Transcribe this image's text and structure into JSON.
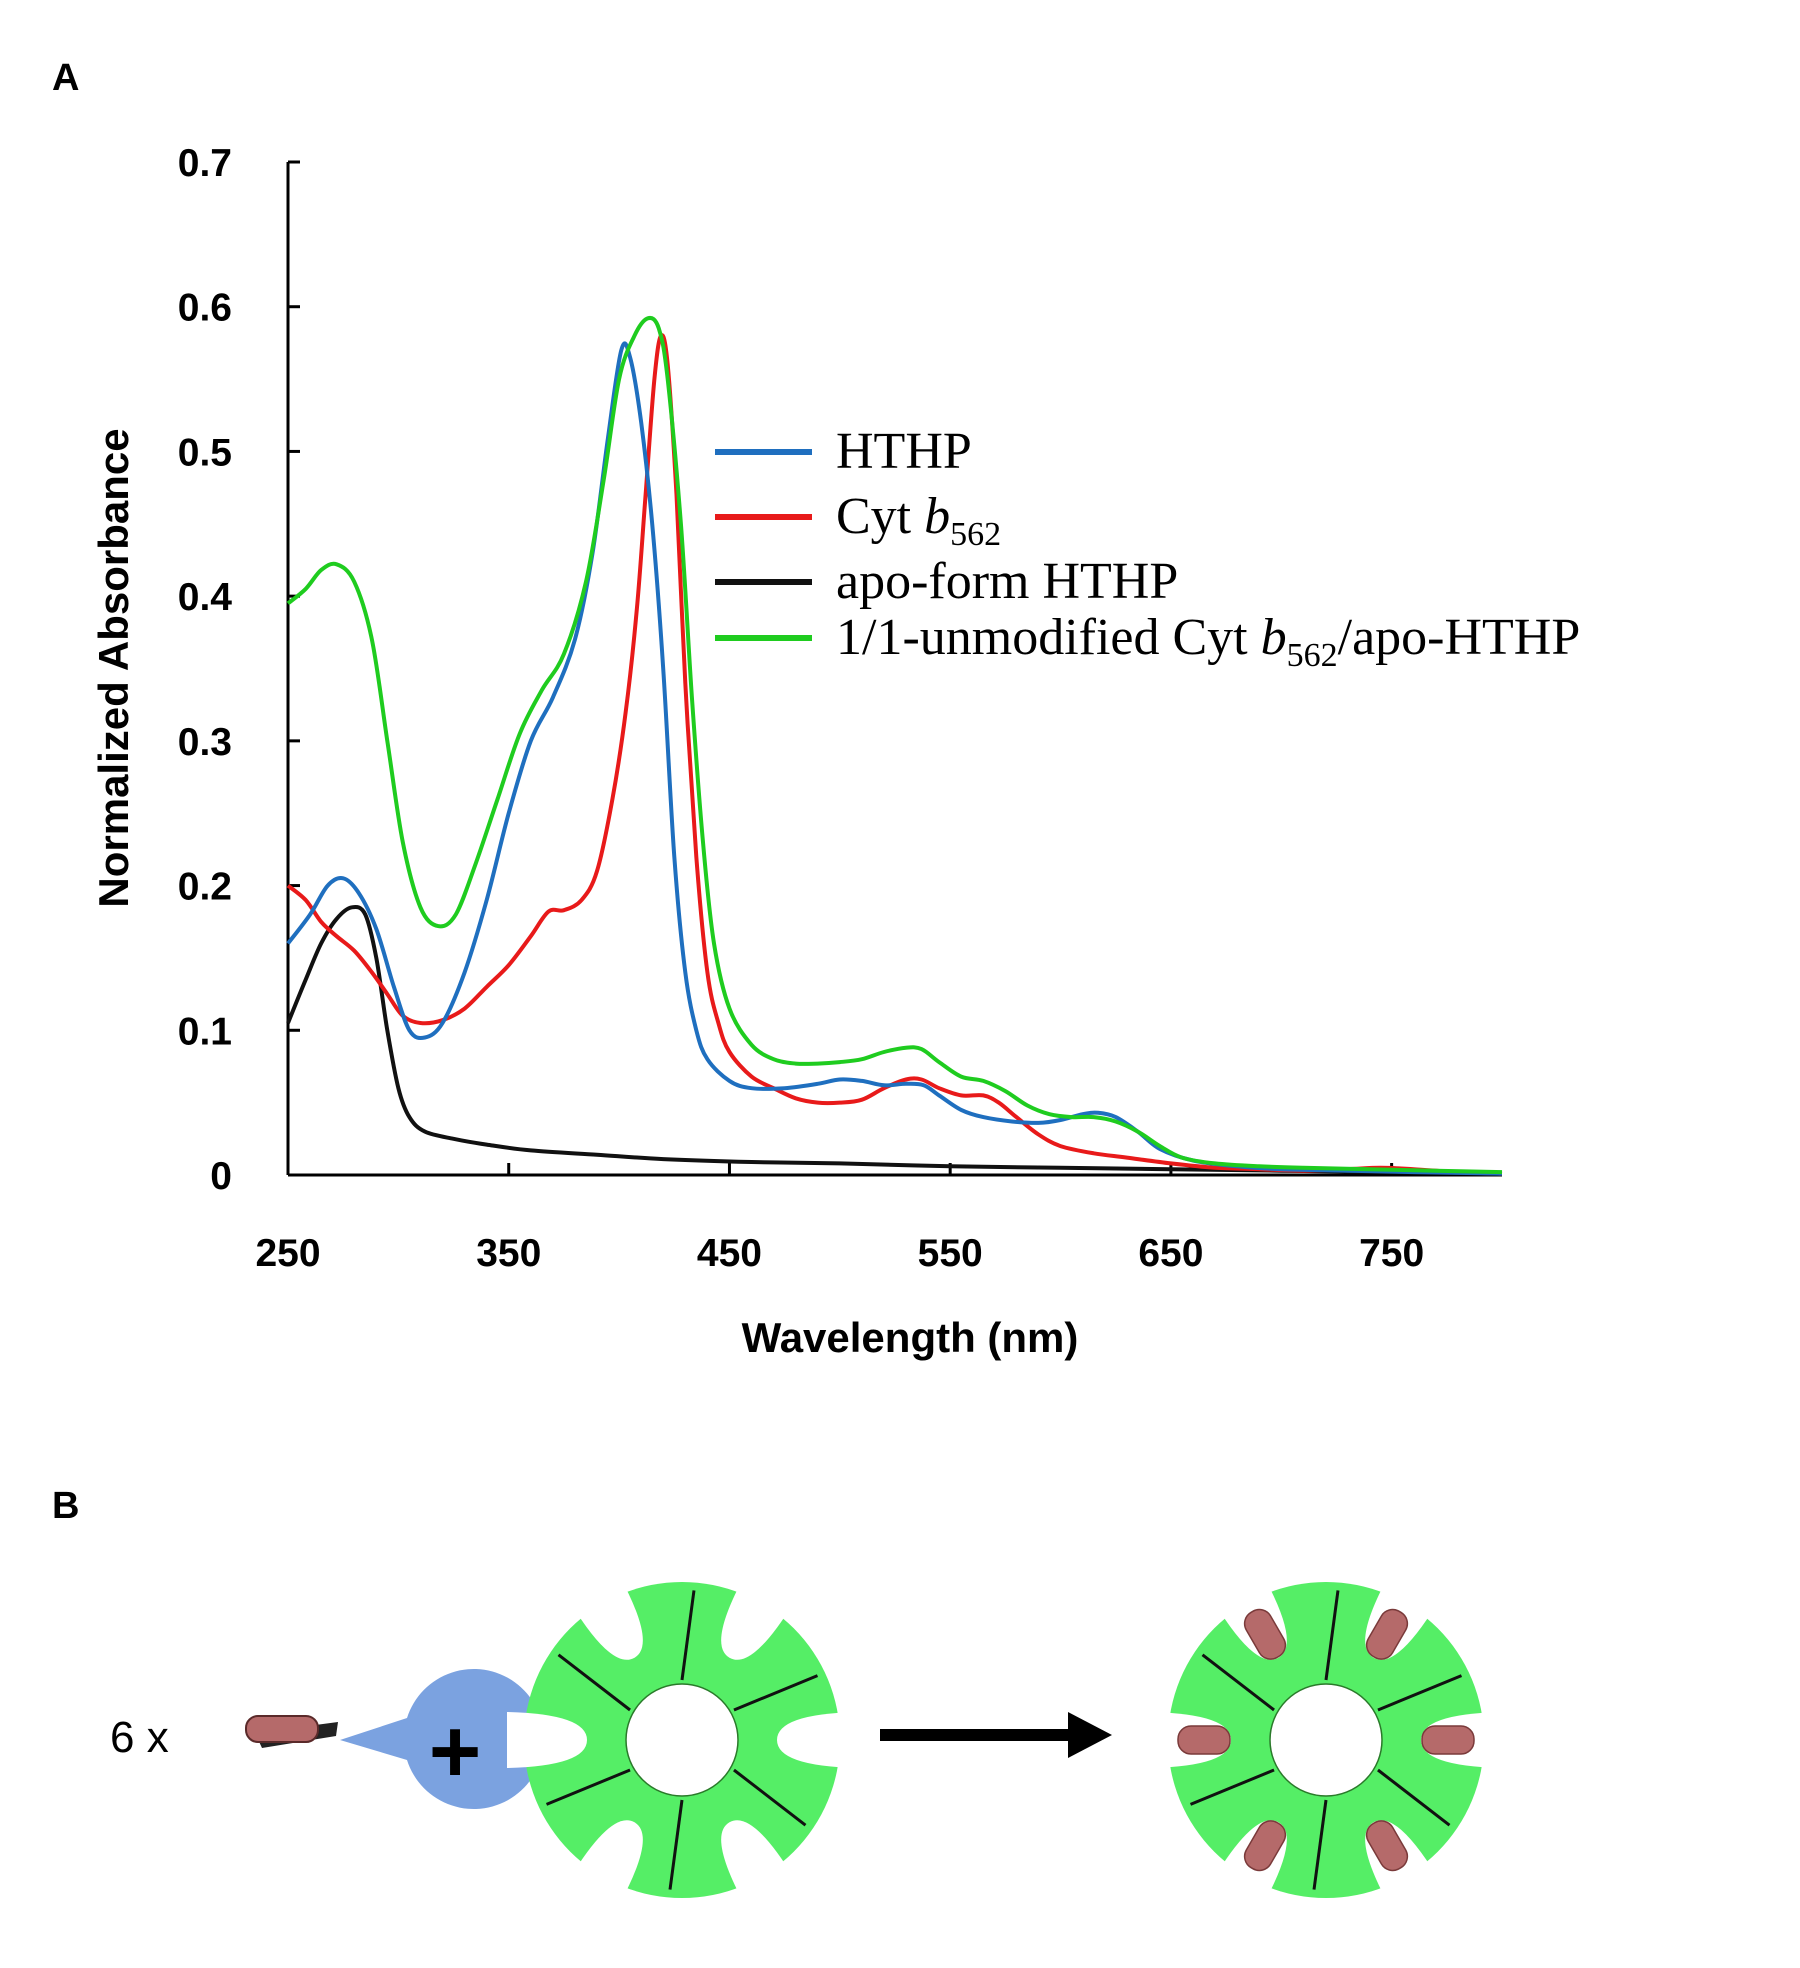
{
  "panels": {
    "a_label": "A",
    "b_label": "B"
  },
  "chart_data": {
    "type": "line",
    "title": "",
    "xlabel": "Wavelength (nm)",
    "ylabel": "Normalized Absorbance",
    "xlim": [
      250,
      800
    ],
    "ylim": [
      0,
      0.7
    ],
    "xticks": [
      250,
      350,
      450,
      550,
      650,
      750
    ],
    "yticks": [
      0,
      0.1,
      0.2,
      0.3,
      0.4,
      0.5,
      0.6,
      0.7
    ],
    "ytick_labels": [
      "0",
      "0.1",
      "0.2",
      "0.3",
      "0.4",
      "0.5",
      "0.6",
      "0.7"
    ],
    "legend_position": "right",
    "series": [
      {
        "key": "hthp",
        "name": "HTHP",
        "color": "#1f6fbf",
        "points": [
          [
            250,
            0.16
          ],
          [
            260,
            0.18
          ],
          [
            268,
            0.2
          ],
          [
            275,
            0.205
          ],
          [
            282,
            0.195
          ],
          [
            290,
            0.17
          ],
          [
            298,
            0.13
          ],
          [
            305,
            0.1
          ],
          [
            312,
            0.095
          ],
          [
            320,
            0.105
          ],
          [
            330,
            0.14
          ],
          [
            340,
            0.19
          ],
          [
            350,
            0.25
          ],
          [
            360,
            0.3
          ],
          [
            370,
            0.33
          ],
          [
            380,
            0.37
          ],
          [
            388,
            0.43
          ],
          [
            395,
            0.51
          ],
          [
            401,
            0.57
          ],
          [
            405,
            0.565
          ],
          [
            410,
            0.52
          ],
          [
            415,
            0.45
          ],
          [
            420,
            0.35
          ],
          [
            425,
            0.22
          ],
          [
            430,
            0.14
          ],
          [
            435,
            0.1
          ],
          [
            440,
            0.08
          ],
          [
            450,
            0.065
          ],
          [
            460,
            0.06
          ],
          [
            475,
            0.06
          ],
          [
            490,
            0.063
          ],
          [
            500,
            0.066
          ],
          [
            510,
            0.065
          ],
          [
            520,
            0.062
          ],
          [
            530,
            0.063
          ],
          [
            538,
            0.062
          ],
          [
            545,
            0.055
          ],
          [
            555,
            0.045
          ],
          [
            565,
            0.04
          ],
          [
            578,
            0.037
          ],
          [
            590,
            0.036
          ],
          [
            600,
            0.038
          ],
          [
            610,
            0.042
          ],
          [
            617,
            0.043
          ],
          [
            625,
            0.04
          ],
          [
            635,
            0.03
          ],
          [
            645,
            0.018
          ],
          [
            660,
            0.01
          ],
          [
            680,
            0.006
          ],
          [
            700,
            0.004
          ],
          [
            730,
            0.003
          ],
          [
            760,
            0.002
          ],
          [
            800,
            0.001
          ]
        ]
      },
      {
        "key": "cyt",
        "name": "Cyt b562",
        "name_main": "Cyt ",
        "name_ital": "b",
        "name_sub": "562",
        "color": "#e81a1a",
        "points": [
          [
            250,
            0.2
          ],
          [
            258,
            0.19
          ],
          [
            265,
            0.175
          ],
          [
            272,
            0.165
          ],
          [
            280,
            0.155
          ],
          [
            288,
            0.14
          ],
          [
            295,
            0.125
          ],
          [
            302,
            0.11
          ],
          [
            310,
            0.105
          ],
          [
            320,
            0.107
          ],
          [
            330,
            0.115
          ],
          [
            340,
            0.13
          ],
          [
            350,
            0.145
          ],
          [
            360,
            0.165
          ],
          [
            368,
            0.182
          ],
          [
            375,
            0.183
          ],
          [
            383,
            0.19
          ],
          [
            390,
            0.21
          ],
          [
            397,
            0.26
          ],
          [
            403,
            0.32
          ],
          [
            408,
            0.39
          ],
          [
            412,
            0.47
          ],
          [
            416,
            0.55
          ],
          [
            419,
            0.58
          ],
          [
            422,
            0.56
          ],
          [
            426,
            0.47
          ],
          [
            430,
            0.34
          ],
          [
            435,
            0.22
          ],
          [
            440,
            0.14
          ],
          [
            445,
            0.105
          ],
          [
            450,
            0.085
          ],
          [
            460,
            0.068
          ],
          [
            470,
            0.06
          ],
          [
            480,
            0.053
          ],
          [
            490,
            0.05
          ],
          [
            500,
            0.05
          ],
          [
            510,
            0.052
          ],
          [
            520,
            0.06
          ],
          [
            530,
            0.066
          ],
          [
            537,
            0.066
          ],
          [
            545,
            0.06
          ],
          [
            555,
            0.055
          ],
          [
            565,
            0.055
          ],
          [
            572,
            0.05
          ],
          [
            580,
            0.04
          ],
          [
            590,
            0.028
          ],
          [
            600,
            0.02
          ],
          [
            615,
            0.015
          ],
          [
            630,
            0.012
          ],
          [
            650,
            0.008
          ],
          [
            670,
            0.005
          ],
          [
            690,
            0.004
          ],
          [
            710,
            0.003
          ],
          [
            730,
            0.004
          ],
          [
            745,
            0.005
          ],
          [
            760,
            0.004
          ],
          [
            780,
            0.002
          ],
          [
            800,
            0.001
          ]
        ]
      },
      {
        "key": "apo",
        "name": "apo-form HTHP",
        "color": "#111111",
        "points": [
          [
            250,
            0.105
          ],
          [
            258,
            0.135
          ],
          [
            265,
            0.16
          ],
          [
            272,
            0.177
          ],
          [
            279,
            0.185
          ],
          [
            285,
            0.18
          ],
          [
            290,
            0.15
          ],
          [
            295,
            0.1
          ],
          [
            300,
            0.06
          ],
          [
            305,
            0.04
          ],
          [
            312,
            0.03
          ],
          [
            325,
            0.025
          ],
          [
            340,
            0.021
          ],
          [
            360,
            0.017
          ],
          [
            390,
            0.014
          ],
          [
            420,
            0.011
          ],
          [
            460,
            0.009
          ],
          [
            500,
            0.008
          ],
          [
            550,
            0.006
          ],
          [
            600,
            0.005
          ],
          [
            650,
            0.004
          ],
          [
            700,
            0.003
          ],
          [
            750,
            0.002
          ],
          [
            800,
            0.001
          ]
        ]
      },
      {
        "key": "mix",
        "name": "1/1-unmodified Cyt b562/apo-HTHP",
        "name_main": "1/1-unmodified Cyt ",
        "name_ital": "b",
        "name_sub": "562",
        "name_tail": "/apo-HTHP",
        "color": "#1fcc1f",
        "points": [
          [
            250,
            0.395
          ],
          [
            258,
            0.405
          ],
          [
            265,
            0.418
          ],
          [
            272,
            0.422
          ],
          [
            280,
            0.41
          ],
          [
            288,
            0.37
          ],
          [
            295,
            0.3
          ],
          [
            302,
            0.23
          ],
          [
            310,
            0.185
          ],
          [
            318,
            0.172
          ],
          [
            326,
            0.18
          ],
          [
            335,
            0.215
          ],
          [
            345,
            0.26
          ],
          [
            355,
            0.305
          ],
          [
            365,
            0.335
          ],
          [
            375,
            0.36
          ],
          [
            385,
            0.41
          ],
          [
            393,
            0.48
          ],
          [
            400,
            0.55
          ],
          [
            407,
            0.58
          ],
          [
            413,
            0.592
          ],
          [
            418,
            0.585
          ],
          [
            422,
            0.55
          ],
          [
            428,
            0.45
          ],
          [
            433,
            0.33
          ],
          [
            438,
            0.23
          ],
          [
            443,
            0.16
          ],
          [
            450,
            0.115
          ],
          [
            460,
            0.09
          ],
          [
            470,
            0.08
          ],
          [
            480,
            0.077
          ],
          [
            490,
            0.077
          ],
          [
            500,
            0.078
          ],
          [
            510,
            0.08
          ],
          [
            520,
            0.085
          ],
          [
            530,
            0.088
          ],
          [
            537,
            0.087
          ],
          [
            545,
            0.078
          ],
          [
            555,
            0.068
          ],
          [
            565,
            0.065
          ],
          [
            575,
            0.058
          ],
          [
            585,
            0.048
          ],
          [
            595,
            0.042
          ],
          [
            605,
            0.04
          ],
          [
            615,
            0.04
          ],
          [
            625,
            0.037
          ],
          [
            635,
            0.03
          ],
          [
            645,
            0.02
          ],
          [
            655,
            0.012
          ],
          [
            670,
            0.008
          ],
          [
            690,
            0.006
          ],
          [
            710,
            0.005
          ],
          [
            740,
            0.004
          ],
          [
            770,
            0.003
          ],
          [
            800,
            0.002
          ]
        ]
      }
    ]
  },
  "schema": {
    "multiplier_text": "6  x",
    "plus_symbol": "+"
  },
  "colors": {
    "green_ring": "#55ee66",
    "blue_protein": "#7ba2e0",
    "heme": "#b56a6a",
    "black": "#000000"
  }
}
